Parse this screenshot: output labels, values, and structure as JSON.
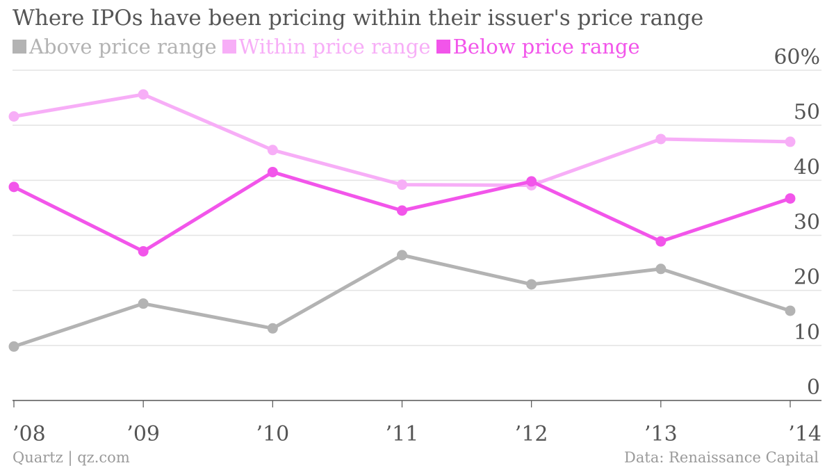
{
  "chart_data": {
    "type": "line",
    "title": "Where IPOs have been pricing within their issuer's price range",
    "categories": [
      "’08",
      "’09",
      "’10",
      "’11",
      "’12",
      "’13",
      "’14"
    ],
    "series": [
      {
        "name": "Above price range",
        "color": "#b3b3b3",
        "values": [
          9.8,
          17.6,
          13.1,
          26.4,
          21.1,
          23.9,
          16.3
        ]
      },
      {
        "name": "Within price range",
        "color": "#f7aef7",
        "values": [
          51.6,
          55.6,
          45.5,
          39.2,
          39.1,
          47.5,
          47.0
        ]
      },
      {
        "name": "Below price range",
        "color": "#f255ea",
        "values": [
          38.8,
          27.1,
          41.5,
          34.5,
          39.8,
          28.9,
          36.7
        ]
      }
    ],
    "ylim": [
      0,
      60
    ],
    "yticks": [
      "0",
      "10",
      "20",
      "30",
      "40",
      "50",
      "60%"
    ],
    "ytick_values": [
      0,
      10,
      20,
      30,
      40,
      50,
      60
    ],
    "grid": true,
    "legend_position": "top-left",
    "y_axis_side": "right"
  },
  "footer": {
    "source_left": "Quartz | qz.com",
    "source_right": "Data: Renaissance Capital"
  }
}
